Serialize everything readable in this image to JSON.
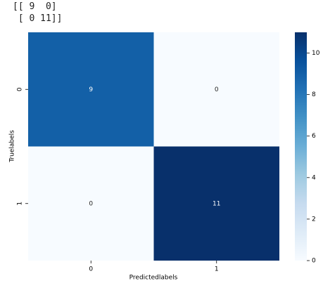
{
  "console_output": [
    "[[ 9  0]",
    " [ 0 11]]"
  ],
  "chart_data": {
    "type": "heatmap",
    "x_label": "Predictedlabels",
    "y_label": "Truelabels",
    "x_categories": [
      "0",
      "1"
    ],
    "y_categories": [
      "0",
      "1"
    ],
    "values": [
      [
        9,
        0
      ],
      [
        0,
        11
      ]
    ],
    "colormap": [
      "#f7fbff",
      "#deebf7",
      "#c6dbef",
      "#9ecae1",
      "#6baed6",
      "#4292c6",
      "#2171b5",
      "#08519c",
      "#08306b"
    ],
    "zlim": [
      0,
      11
    ],
    "zticks": [
      0,
      2,
      4,
      6,
      8,
      10
    ]
  }
}
